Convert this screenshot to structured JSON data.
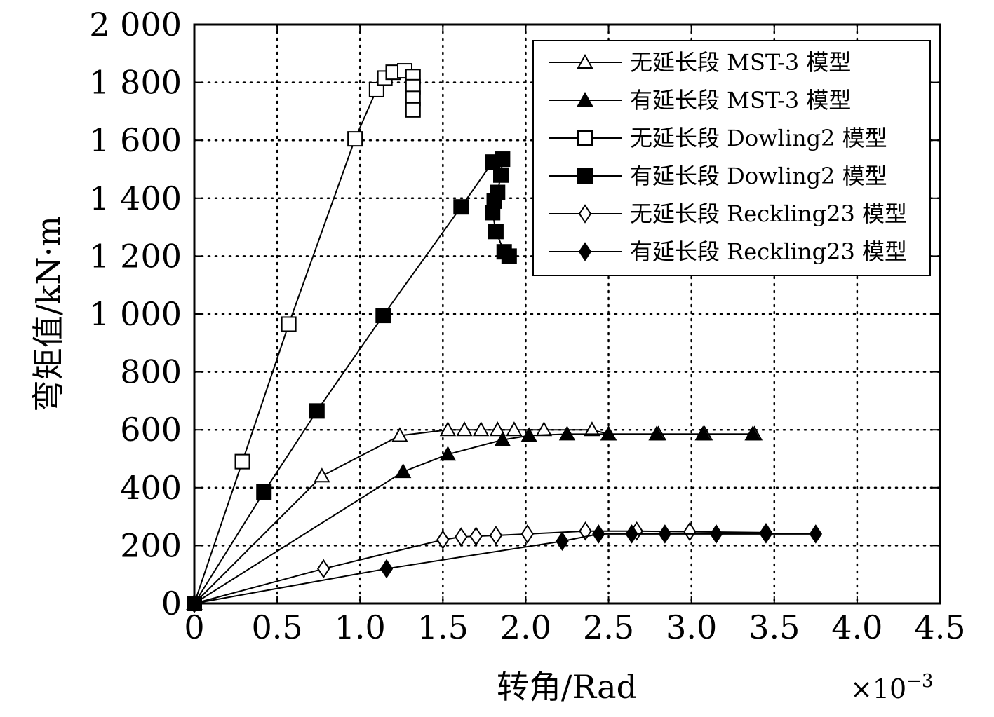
{
  "chart_data": {
    "type": "line",
    "xlabel": "转角/Rad",
    "ylabel": "弯矩值/kN·m",
    "x_multiplier": "×10",
    "x_multiplier_exp": "−3",
    "xlim": [
      0,
      4.5
    ],
    "ylim": [
      0,
      2000
    ],
    "grid": true,
    "x_ticks": [
      0,
      0.5,
      1.0,
      1.5,
      2.0,
      2.5,
      3.0,
      3.5,
      4.0,
      4.5
    ],
    "x_tick_labels": [
      "0",
      "0.5",
      "1.0",
      "1.5",
      "2.0",
      "2.5",
      "3.0",
      "3.5",
      "4.0",
      "4.5"
    ],
    "y_ticks": [
      0,
      200,
      400,
      600,
      800,
      1000,
      1200,
      1400,
      1600,
      1800,
      2000
    ],
    "y_tick_labels": [
      "0",
      "200",
      "400",
      "600",
      "800",
      "1 000",
      "1 200",
      "1 400",
      "1 600",
      "1 800",
      "2 000"
    ],
    "legend_position": "top-right",
    "series": [
      {
        "name": "无延长段 MST-3 模型",
        "marker": "triangle-open",
        "x": [
          0,
          0.77,
          1.24,
          1.53,
          1.63,
          1.73,
          1.83,
          1.93,
          2.11,
          2.4,
          2.5,
          2.8,
          3.08,
          3.38
        ],
        "y": [
          0,
          440,
          580,
          600,
          600,
          600,
          600,
          600,
          600,
          600,
          585,
          585,
          585,
          585
        ]
      },
      {
        "name": "有延长段 MST-3 模型",
        "marker": "triangle-filled",
        "x": [
          0,
          1.26,
          1.53,
          1.86,
          2.02,
          2.25,
          2.5,
          2.79,
          3.07,
          3.37
        ],
        "y": [
          0,
          455,
          515,
          565,
          580,
          585,
          585,
          585,
          585,
          585
        ]
      },
      {
        "name": "无延长段 Dowling2 模型",
        "marker": "square-open",
        "x": [
          0,
          0.29,
          0.57,
          0.97,
          1.1,
          1.15,
          1.2,
          1.27,
          1.32,
          1.32,
          1.32,
          1.32
        ],
        "y": [
          0,
          490,
          965,
          1605,
          1775,
          1815,
          1835,
          1840,
          1820,
          1785,
          1745,
          1705
        ]
      },
      {
        "name": "有延长段 Dowling2 模型",
        "marker": "square-filled",
        "x": [
          0,
          0.42,
          0.74,
          1.14,
          1.61,
          1.8,
          1.86,
          1.85,
          1.83,
          1.81,
          1.8,
          1.82,
          1.87,
          1.9
        ],
        "y": [
          0,
          385,
          665,
          995,
          1370,
          1525,
          1535,
          1480,
          1420,
          1390,
          1350,
          1285,
          1215,
          1200
        ]
      },
      {
        "name": "无延长段 Reckling23 模型",
        "marker": "diamond-open",
        "x": [
          0,
          0.78,
          1.5,
          1.61,
          1.7,
          1.82,
          2.01,
          2.36,
          2.67,
          2.99,
          3.45
        ],
        "y": [
          0,
          120,
          220,
          230,
          232,
          235,
          240,
          250,
          250,
          248,
          245
        ]
      },
      {
        "name": "有延长段 Reckling23 模型",
        "marker": "diamond-filled",
        "x": [
          0,
          1.16,
          2.22,
          2.44,
          2.64,
          2.84,
          3.15,
          3.45,
          3.75
        ],
        "y": [
          0,
          120,
          215,
          240,
          240,
          240,
          240,
          240,
          240
        ]
      }
    ]
  }
}
